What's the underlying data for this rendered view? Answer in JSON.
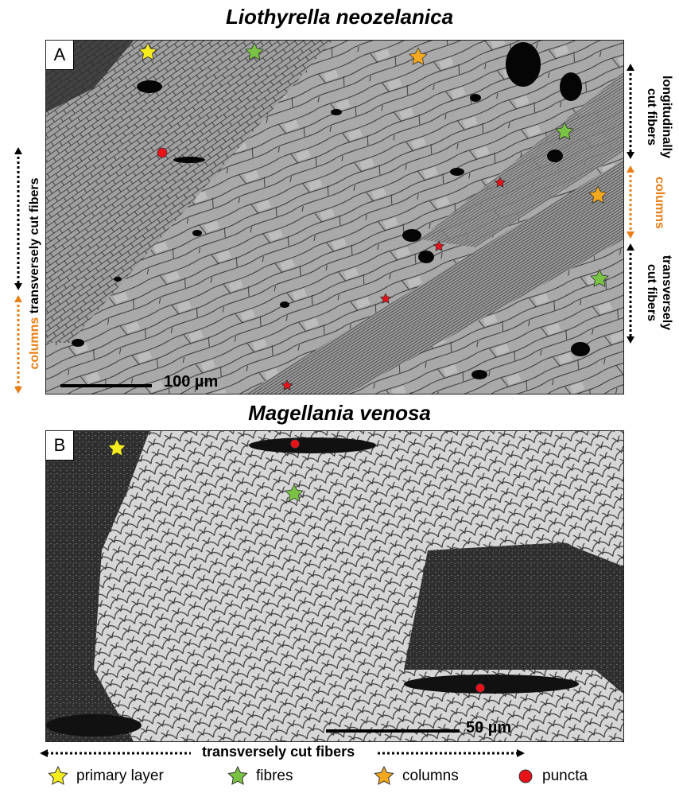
{
  "panel_a": {
    "title": "Liothyrella neozelanica",
    "letter": "A",
    "scale_bar": "100 µm",
    "left_labels": {
      "top": "transversely cut fibers",
      "bottom": "columns"
    },
    "right_labels": {
      "top_line1": "longitudinally",
      "top_line2": "cut fibers",
      "middle": "columns",
      "bottom_line1": "transversely",
      "bottom_line2": "cut fibers"
    }
  },
  "panel_b": {
    "title": "Magellania venosa",
    "letter": "B",
    "scale_bar": "50 µm",
    "bottom_label": "transversely cut fibers"
  },
  "legend": [
    {
      "label": "primary layer",
      "marker": "star",
      "color": "#f5ec1d"
    },
    {
      "label": "fibres",
      "marker": "star",
      "color": "#7ac243"
    },
    {
      "label": "columns",
      "marker": "star",
      "color": "#f4a81d"
    },
    {
      "label": "puncta",
      "marker": "circle",
      "color": "#e8121a"
    }
  ],
  "colors": {
    "orange": "#e87e14",
    "red": "#e8121a"
  }
}
